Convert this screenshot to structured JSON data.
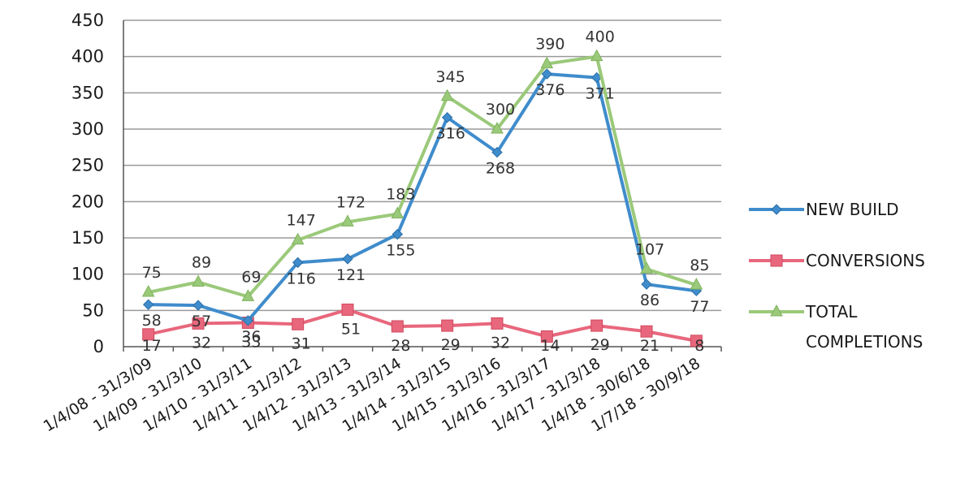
{
  "chart_data": {
    "type": "line",
    "categories": [
      "1/4/08 - 31/3/09",
      "1/4/09 - 31/3/10",
      "1/4/10 - 31/3/11",
      "1/4/11 - 31/3/12",
      "1/4/12 - 31/3/13",
      "1/4/13 - 31/3/14",
      "1/4/14 - 31/3/15",
      "1/4/15 - 31/3/16",
      "1/4/16 - 31/3/17",
      "1/4/17 - 31/3/18",
      "1/4/18 - 30/6/18",
      "1/7/18 - 30/9/18"
    ],
    "series": [
      {
        "name": "NEW BUILD",
        "color": "#3f8ccc",
        "marker": "diamond",
        "values": [
          58,
          57,
          36,
          116,
          121,
          155,
          316,
          268,
          376,
          371,
          86,
          77
        ]
      },
      {
        "name": "CONVERSIONS",
        "color": "#e8677c",
        "marker": "square",
        "values": [
          17,
          32,
          33,
          31,
          51,
          28,
          29,
          32,
          14,
          29,
          21,
          8
        ]
      },
      {
        "name": "TOTAL COMPLETIONS",
        "color": "#9bc97a",
        "marker": "triangle",
        "values": [
          75,
          89,
          69,
          147,
          172,
          183,
          345,
          300,
          390,
          400,
          107,
          85
        ]
      }
    ],
    "yticks": [
      0,
      50,
      100,
      150,
      200,
      250,
      300,
      350,
      400,
      450
    ],
    "ylim": [
      0,
      450
    ],
    "grid": true,
    "legend_position": "right",
    "title": "",
    "xlabel": "",
    "ylabel": ""
  }
}
